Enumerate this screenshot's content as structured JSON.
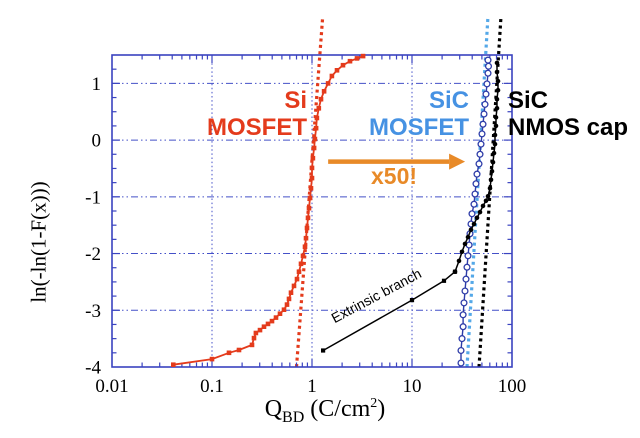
{
  "chart_data": {
    "type": "scatter",
    "title": "",
    "x_axis": {
      "scale": "log",
      "min": 0.01,
      "max": 100,
      "label_parts": [
        {
          "t": "Q",
          "style": "base"
        },
        {
          "t": "BD",
          "style": "sub"
        },
        {
          "t": " (C/cm",
          "style": "base"
        },
        {
          "t": "2",
          "style": "sup"
        },
        {
          "t": ")",
          "style": "base"
        }
      ],
      "ticks": [
        {
          "v": 0.01,
          "label": "0.01"
        },
        {
          "v": 0.1,
          "label": "0.1"
        },
        {
          "v": 1,
          "label": "1"
        },
        {
          "v": 10,
          "label": "10"
        },
        {
          "v": 100,
          "label": "100"
        }
      ],
      "gridlines": [
        0.1,
        1,
        10
      ]
    },
    "y_axis": {
      "label": "ln(-ln(1-F(x)))",
      "min": -4,
      "max": 1.5,
      "minor_step": 0.25,
      "ticks": [
        {
          "v": 1,
          "label": "1"
        },
        {
          "v": 0,
          "label": "0"
        },
        {
          "v": -1,
          "label": "-1"
        },
        {
          "v": -2,
          "label": "-2"
        },
        {
          "v": -3,
          "label": "-3"
        },
        {
          "v": -4,
          "label": "-4"
        }
      ],
      "gridlines": [
        1,
        0,
        -1,
        -2,
        -3
      ]
    },
    "series": [
      {
        "name": "Si MOSFET",
        "color": "#e43b1c",
        "marker": "square",
        "marker_size": 4.6,
        "line_width": 1.8,
        "points": [
          [
            0.041,
            -3.96
          ],
          [
            0.1,
            -3.86
          ],
          [
            0.148,
            -3.75
          ],
          [
            0.186,
            -3.7
          ],
          [
            0.251,
            -3.61
          ],
          [
            0.263,
            -3.49
          ],
          [
            0.275,
            -3.4
          ],
          [
            0.302,
            -3.35
          ],
          [
            0.331,
            -3.29
          ],
          [
            0.363,
            -3.24
          ],
          [
            0.398,
            -3.19
          ],
          [
            0.437,
            -3.13
          ],
          [
            0.479,
            -3.06
          ],
          [
            0.525,
            -2.99
          ],
          [
            0.562,
            -2.9
          ],
          [
            0.589,
            -2.8
          ],
          [
            0.617,
            -2.69
          ],
          [
            0.661,
            -2.57
          ],
          [
            0.708,
            -2.45
          ],
          [
            0.741,
            -2.32
          ],
          [
            0.776,
            -2.18
          ],
          [
            0.813,
            -2.04
          ],
          [
            0.851,
            -1.88
          ],
          [
            0.871,
            -1.73
          ],
          [
            0.891,
            -1.55
          ],
          [
            0.912,
            -1.37
          ],
          [
            0.933,
            -1.2
          ],
          [
            0.955,
            -1.02
          ],
          [
            0.977,
            -0.85
          ],
          [
            1.0,
            -0.67
          ],
          [
            1.0,
            -0.49
          ],
          [
            1.02,
            -0.32
          ],
          [
            1.05,
            -0.14
          ],
          [
            1.07,
            0.02
          ],
          [
            1.1,
            0.21
          ],
          [
            1.12,
            0.39
          ],
          [
            1.17,
            0.56
          ],
          [
            1.23,
            0.72
          ],
          [
            1.32,
            0.86
          ],
          [
            1.45,
            1.0
          ],
          [
            1.58,
            1.13
          ],
          [
            1.78,
            1.23
          ],
          [
            2.04,
            1.32
          ],
          [
            2.4,
            1.39
          ],
          [
            2.82,
            1.44
          ],
          [
            3.24,
            1.48
          ]
        ]
      },
      {
        "name": "SiC MOSFET",
        "color": "#2e3ca8",
        "marker": "circle-open",
        "marker_size": 2.9,
        "line_width": 1.4,
        "points": [
          [
            30.9,
            -3.93
          ],
          [
            30.9,
            -3.71
          ],
          [
            31.6,
            -3.5
          ],
          [
            32.4,
            -3.29
          ],
          [
            32.4,
            -3.08
          ],
          [
            33.1,
            -2.87
          ],
          [
            33.9,
            -2.66
          ],
          [
            34.7,
            -2.45
          ],
          [
            35.5,
            -2.24
          ],
          [
            36.3,
            -2.04
          ],
          [
            37.2,
            -1.85
          ],
          [
            38.0,
            -1.65
          ],
          [
            38.9,
            -1.48
          ],
          [
            39.8,
            -1.3
          ],
          [
            41.7,
            -1.13
          ],
          [
            42.7,
            -0.95
          ],
          [
            43.7,
            -0.77
          ],
          [
            44.7,
            -0.6
          ],
          [
            46.8,
            -0.42
          ],
          [
            47.9,
            -0.25
          ],
          [
            49.0,
            -0.07
          ],
          [
            50.1,
            0.11
          ],
          [
            51.3,
            0.28
          ],
          [
            52.5,
            0.46
          ],
          [
            53.7,
            0.63
          ],
          [
            55.0,
            0.81
          ],
          [
            56.2,
            0.99
          ],
          [
            57.5,
            1.18
          ],
          [
            58.2,
            1.3
          ],
          [
            57.5,
            1.41
          ]
        ]
      },
      {
        "name": "SiC NMOS cap (extrinsic branch)",
        "color": "#000000",
        "marker": "square",
        "marker_size": 4.2,
        "line_width": 1.5,
        "points": [
          [
            1.29,
            -3.71
          ],
          [
            10.0,
            -2.82
          ],
          [
            20.9,
            -2.48
          ],
          [
            26.9,
            -2.32
          ]
        ]
      },
      {
        "name": "SiC NMOS cap (intrinsic)",
        "color": "#000000",
        "marker": "circle",
        "marker_size": 2.3,
        "line_width": 1.5,
        "points": [
          [
            26.9,
            -2.32
          ],
          [
            29.5,
            -2.13
          ],
          [
            31.6,
            -1.97
          ],
          [
            33.9,
            -1.83
          ],
          [
            36.3,
            -1.71
          ],
          [
            38.9,
            -1.58
          ],
          [
            41.7,
            -1.48
          ],
          [
            44.7,
            -1.37
          ],
          [
            47.9,
            -1.27
          ],
          [
            51.3,
            -1.16
          ],
          [
            55.0,
            -1.07
          ],
          [
            57.5,
            -0.99
          ],
          [
            60.3,
            -0.85
          ],
          [
            61.7,
            -0.7
          ],
          [
            63.1,
            -0.55
          ],
          [
            64.6,
            -0.39
          ],
          [
            66.1,
            -0.23
          ],
          [
            67.6,
            -0.07
          ],
          [
            67.6,
            0.09
          ],
          [
            69.2,
            0.25
          ],
          [
            69.2,
            0.4
          ],
          [
            70.8,
            0.56
          ],
          [
            70.8,
            0.72
          ],
          [
            72.4,
            0.88
          ],
          [
            72.4,
            1.04
          ],
          [
            70.8,
            1.2
          ],
          [
            70.8,
            1.36
          ]
        ]
      }
    ],
    "fit_lines": [
      {
        "name": "si-mosfet-fit",
        "color": "#e43b1c",
        "q1": 0.7,
        "w1": -4.0,
        "q2": 1.28,
        "w2": 2.18
      },
      {
        "name": "sic-mosfet-fit",
        "color": "#54a8e8",
        "q1": 35.5,
        "w1": -4.0,
        "q2": 57.5,
        "w2": 2.18
      },
      {
        "name": "sic-nmos-fit",
        "color": "#000000",
        "q1": 46.8,
        "w1": -4.0,
        "q2": 77.6,
        "w2": 2.18
      }
    ],
    "annotations": {
      "si_label": {
        "line1": "Si",
        "line2": "MOSFET",
        "color": "#e43b1c"
      },
      "sic_mosfet_label": {
        "line1": "SiC",
        "line2": "MOSFET",
        "color": "#4692e3"
      },
      "sic_nmos_label": {
        "line1": "SiC",
        "line2": "NMOS cap",
        "color": "#000000"
      },
      "multiplier": {
        "text": "x50!",
        "color": "#e88a28"
      },
      "extrinsic": {
        "text": "Extrinsic branch",
        "color": "#000000",
        "angle_deg": -28
      },
      "arrow": {
        "color": "#e88a28",
        "from_q": 1.45,
        "to_q": 23.5,
        "w": -0.38,
        "head_len": 16,
        "head_half_h": 8,
        "shaft_width": 4.5
      }
    },
    "style": {
      "frame_color": "#3a43c0",
      "grid_color": "#4450c8",
      "tick_label_color": "#000000",
      "background": "#ffffff"
    }
  }
}
